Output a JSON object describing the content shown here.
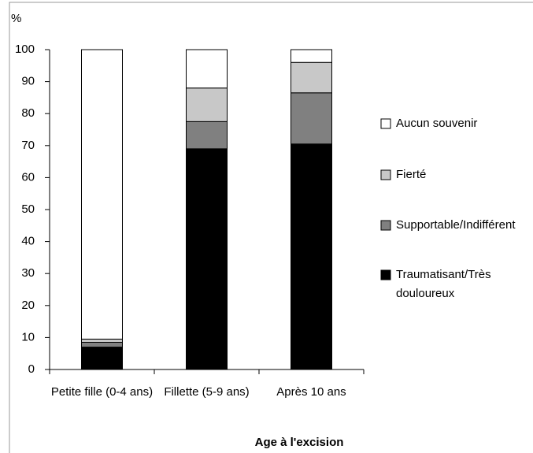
{
  "chart_data": {
    "type": "stacked_bar",
    "y_axis_label": "%",
    "x_axis_label": "Age à l'excision",
    "categories": [
      "Petite fille (0-4 ans)",
      "Fillette (5-9 ans)",
      "Après 10 ans"
    ],
    "series": [
      {
        "name": "Traumatisant/Très douloureux",
        "color": "#000000",
        "values": [
          7,
          69,
          70.5
        ]
      },
      {
        "name": "Supportable/Indifférent",
        "color": "#808080",
        "values": [
          1.5,
          8.5,
          16
        ]
      },
      {
        "name": "Fierté",
        "color": "#c8c8c8",
        "values": [
          1,
          10.5,
          9.5
        ]
      },
      {
        "name": "Aucun souvenir",
        "color": "#ffffff",
        "values": [
          90.5,
          12,
          4
        ]
      }
    ],
    "ylim": [
      0,
      100
    ],
    "yticks": [
      0,
      10,
      20,
      30,
      40,
      50,
      60,
      70,
      80,
      90,
      100
    ],
    "legend": "right"
  }
}
